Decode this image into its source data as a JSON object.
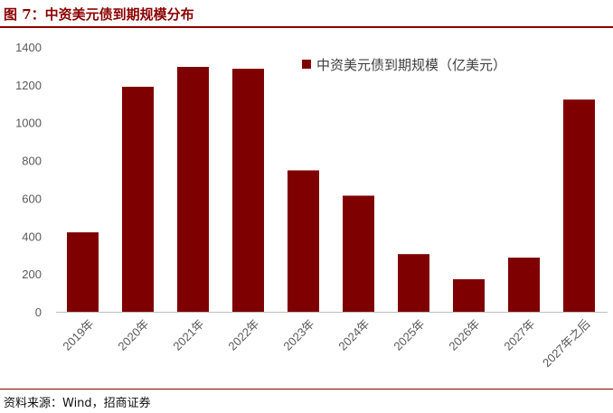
{
  "figure": {
    "title": "图 7：中资美元债到期规模分布",
    "source": "资料来源：Wind，招商证券"
  },
  "colors": {
    "bar": "#7f0000",
    "accent": "#8b0000",
    "axis": "#bfbfbf",
    "text": "#595959"
  },
  "chart_data": {
    "type": "bar",
    "categories": [
      "2019年",
      "2020年",
      "2021年",
      "2022年",
      "2023年",
      "2024年",
      "2025年",
      "2026年",
      "2027年",
      "2027年之后"
    ],
    "series": [
      {
        "name": "中资美元债到期规模（亿美元）",
        "values": [
          420,
          1190,
          1295,
          1285,
          748,
          614,
          305,
          172,
          286,
          1122
        ]
      }
    ],
    "ylim": [
      0,
      1400
    ],
    "yticks": [
      0,
      200,
      400,
      600,
      800,
      1000,
      1200,
      1400
    ],
    "grid": false,
    "legend_position": "top-right"
  }
}
